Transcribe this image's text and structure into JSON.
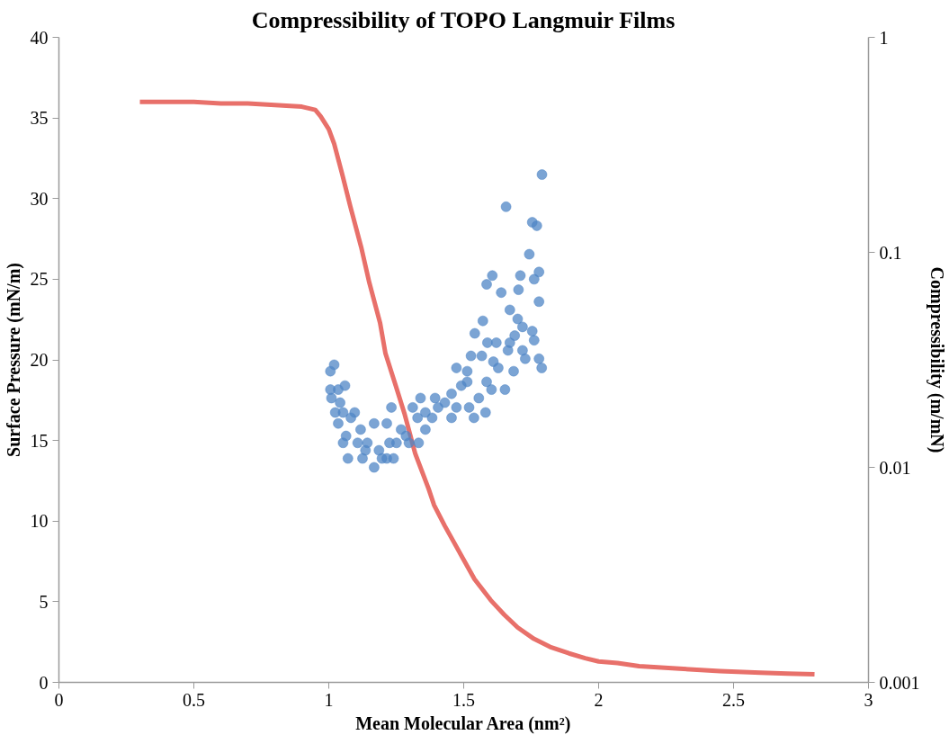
{
  "chart_data": {
    "type": "scatter",
    "title": "Compressibility of TOPO Langmuir Films",
    "xlabel": "Mean Molecular Area (nm²)",
    "ylabel": "Surface Pressure (mN/m)",
    "y2label": "Compressibility (m/mN)",
    "xlim": [
      0,
      3
    ],
    "xticks": [
      0,
      0.5,
      1,
      1.5,
      2,
      2.5,
      3
    ],
    "ylim": [
      0,
      40
    ],
    "yticks": [
      0,
      5,
      10,
      15,
      20,
      25,
      30,
      35,
      40
    ],
    "y2lim": [
      0.001,
      1
    ],
    "y2ticks": [
      0.001,
      0.01,
      0.1,
      1
    ],
    "log": "y2",
    "grid": false,
    "series": [
      {
        "type": "line",
        "color": "#e8706a",
        "x": [
          0.3,
          0.4,
          0.5,
          0.6,
          0.7,
          0.8,
          0.9,
          0.95,
          0.97,
          1.0,
          1.02,
          1.05,
          1.08,
          1.12,
          1.15,
          1.19,
          1.21,
          1.25,
          1.28,
          1.32,
          1.37,
          1.39,
          1.43,
          1.47,
          1.54,
          1.6,
          1.65,
          1.7,
          1.76,
          1.82,
          1.89,
          1.95,
          2.0,
          2.07,
          2.15,
          2.3,
          2.45,
          2.6,
          2.7,
          2.8
        ],
        "values": [
          36.0,
          36.0,
          36.0,
          35.9,
          35.9,
          35.8,
          35.7,
          35.5,
          35.1,
          34.3,
          33.4,
          31.5,
          29.5,
          27.0,
          24.8,
          22.3,
          20.4,
          18.3,
          16.7,
          14.2,
          12.0,
          11.0,
          9.7,
          8.5,
          6.4,
          5.1,
          4.2,
          3.4,
          2.7,
          2.2,
          1.8,
          1.5,
          1.3,
          1.2,
          1.0,
          0.85,
          0.7,
          0.6,
          0.55,
          0.5
        ]
      },
      {
        "marker": "circle",
        "axis": "y2",
        "color": "#4f86c6",
        "x": [
          1.79,
          1.657,
          1.754,
          1.771,
          1.743,
          1.606,
          1.585,
          1.71,
          1.779,
          1.761,
          1.703,
          1.639,
          1.779,
          1.671,
          1.7,
          1.571,
          1.718,
          1.754,
          1.541,
          1.689,
          1.761,
          1.588,
          1.621,
          1.671,
          1.664,
          1.718,
          1.527,
          1.567,
          1.779,
          1.728,
          1.61,
          1.789,
          1.628,
          1.685,
          1.473,
          1.513,
          1.02,
          1.006,
          1.06,
          1.513,
          1.585,
          1.653,
          1.603,
          1.491,
          1.006,
          1.035,
          1.556,
          1.455,
          1.01,
          1.042,
          1.43,
          1.394,
          1.34,
          1.473,
          1.52,
          1.232,
          1.024,
          1.096,
          1.358,
          1.405,
          1.311,
          1.581,
          1.538,
          1.053,
          1.455,
          1.383,
          1.329,
          1.035,
          1.082,
          1.168,
          1.215,
          1.118,
          1.268,
          1.358,
          1.064,
          1.286,
          1.143,
          1.225,
          1.333,
          1.053,
          1.107,
          1.186,
          1.251,
          1.297,
          1.071,
          1.136,
          1.215,
          1.125,
          1.168,
          1.197,
          1.24
        ],
        "values": [
          0.23,
          0.163,
          0.138,
          0.133,
          0.098,
          0.078,
          0.071,
          0.078,
          0.081,
          0.075,
          0.067,
          0.065,
          0.059,
          0.054,
          0.049,
          0.048,
          0.045,
          0.043,
          0.042,
          0.041,
          0.039,
          0.038,
          0.038,
          0.038,
          0.035,
          0.035,
          0.033,
          0.033,
          0.032,
          0.032,
          0.031,
          0.029,
          0.029,
          0.028,
          0.029,
          0.028,
          0.03,
          0.028,
          0.024,
          0.025,
          0.025,
          0.023,
          0.023,
          0.024,
          0.023,
          0.023,
          0.021,
          0.022,
          0.021,
          0.02,
          0.02,
          0.021,
          0.021,
          0.019,
          0.019,
          0.019,
          0.018,
          0.018,
          0.018,
          0.019,
          0.019,
          0.018,
          0.017,
          0.018,
          0.017,
          0.017,
          0.017,
          0.016,
          0.017,
          0.016,
          0.016,
          0.015,
          0.015,
          0.015,
          0.014,
          0.014,
          0.013,
          0.013,
          0.013,
          0.013,
          0.013,
          0.012,
          0.013,
          0.013,
          0.011,
          0.012,
          0.011,
          0.011,
          0.01,
          0.011,
          0.011
        ]
      }
    ]
  }
}
